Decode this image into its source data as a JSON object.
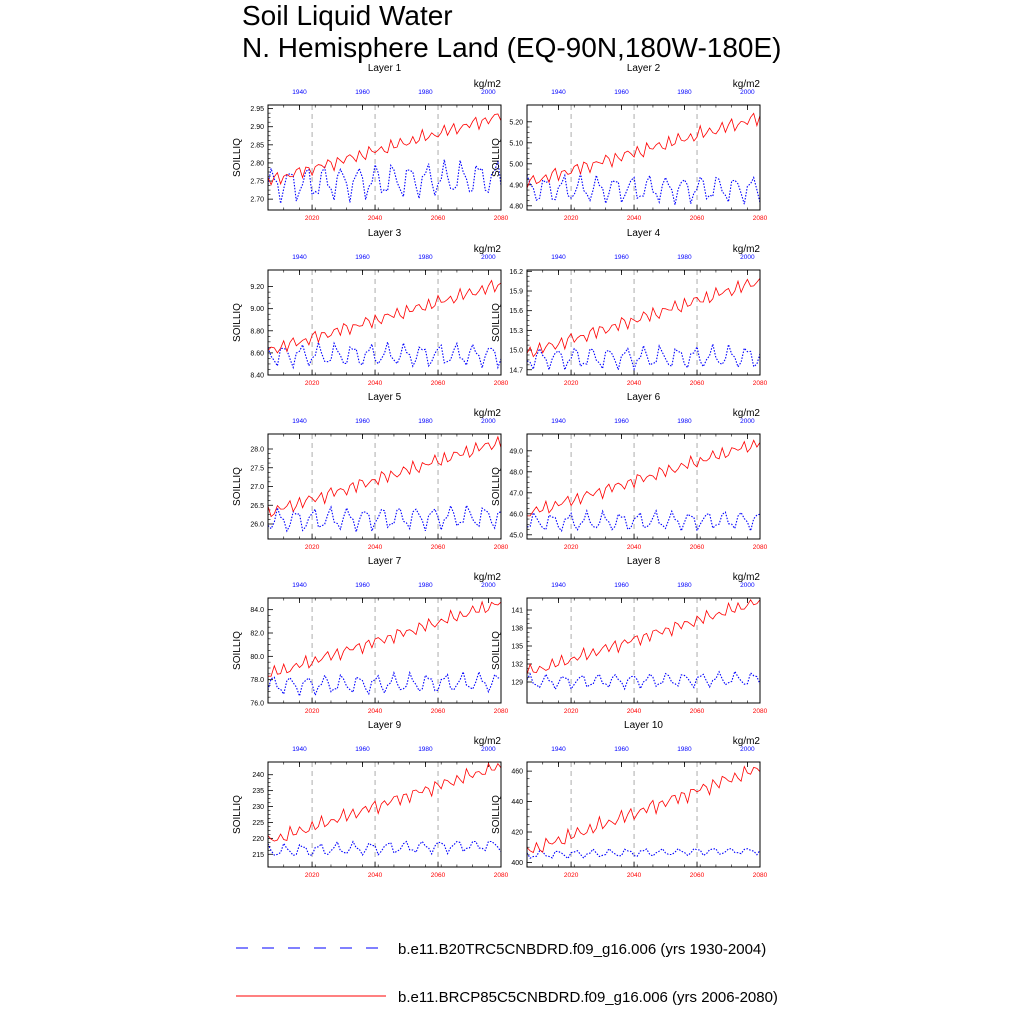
{
  "figure": {
    "title_line1": "Soil Liquid Water",
    "title_line2": "N. Hemisphere Land (EQ-90N,180W-180E)",
    "units": "kg/m2",
    "ylabel": "SOILLIQ",
    "colors": {
      "historical": "#0000ff",
      "future": "#ff0000",
      "grid": "#999999"
    }
  },
  "legend": {
    "historical": "b.e11.B20TRC5CNBDRD.f09_g16.006 (yrs 1930-2004)",
    "future": "b.e11.BRCP85C5CNBDRD.f09_g16.006 (yrs 2006-2080)"
  },
  "chart_data": [
    {
      "type": "line",
      "title": "Layer 1",
      "units": "kg/m2",
      "ylabel": "SOILLIQ",
      "ylim": [
        2.67,
        2.96
      ],
      "yticks": [
        2.7,
        2.75,
        2.8,
        2.85,
        2.9,
        2.95
      ],
      "ytick_labels": [
        "2.70",
        "2.75",
        "2.80",
        "2.85",
        "2.90",
        "2.95"
      ],
      "x_bottom_ticks": [
        2020,
        2040,
        2060,
        2080
      ],
      "x_top_ticks": [
        1940,
        1960,
        1980,
        2000
      ],
      "dashed_grid_x": [
        2020,
        2040,
        2060
      ],
      "series": [
        {
          "name": "b.e11.B20TRC5CNBDRD.f09_g16.006 (yrs 1930-2004)",
          "x_range": [
            1930,
            2004
          ],
          "y_start": 2.74,
          "y_end": 2.76,
          "y_min": 2.68,
          "y_max": 2.82,
          "style": "dotted"
        },
        {
          "name": "b.e11.BRCP85C5CNBDRD.f09_g16.006 (yrs 2006-2080)",
          "x_range": [
            2006,
            2080
          ],
          "y_start": 2.75,
          "y_end": 2.93,
          "y_min": 2.74,
          "y_max": 2.95,
          "style": "solid"
        }
      ]
    },
    {
      "type": "line",
      "title": "Layer 2",
      "units": "kg/m2",
      "ylabel": "SOILLIQ",
      "ylim": [
        4.78,
        5.28
      ],
      "yticks": [
        4.8,
        4.9,
        5.0,
        5.1,
        5.2
      ],
      "ytick_labels": [
        "4.80",
        "4.90",
        "5.00",
        "5.10",
        "5.20"
      ],
      "x_bottom_ticks": [
        2020,
        2040,
        2060,
        2080
      ],
      "x_top_ticks": [
        1940,
        1960,
        1980,
        2000
      ],
      "dashed_grid_x": [
        2020,
        2040,
        2060
      ],
      "series": [
        {
          "name": "b.e11.B20TRC5CNBDRD.f09_g16.006 (yrs 1930-2004)",
          "x_range": [
            1930,
            2004
          ],
          "y_start": 4.88,
          "y_end": 4.88,
          "y_min": 4.8,
          "y_max": 4.99,
          "style": "dotted"
        },
        {
          "name": "b.e11.BRCP85C5CNBDRD.f09_g16.006 (yrs 2006-2080)",
          "x_range": [
            2006,
            2080
          ],
          "y_start": 4.91,
          "y_end": 5.22,
          "y_min": 4.87,
          "y_max": 5.26,
          "style": "solid"
        }
      ]
    },
    {
      "type": "line",
      "title": "Layer 3",
      "units": "kg/m2",
      "ylabel": "SOILLIQ",
      "ylim": [
        8.4,
        9.35
      ],
      "yticks": [
        8.4,
        8.6,
        8.8,
        9.0,
        9.2
      ],
      "ytick_labels": [
        "8.40",
        "8.60",
        "8.80",
        "9.00",
        "9.20"
      ],
      "x_bottom_ticks": [
        2020,
        2040,
        2060,
        2080
      ],
      "x_top_ticks": [
        1940,
        1960,
        1980,
        2000
      ],
      "dashed_grid_x": [
        2020,
        2040,
        2060
      ],
      "series": [
        {
          "name": "b.e11.B20TRC5CNBDRD.f09_g16.006 (yrs 1930-2004)",
          "x_range": [
            1930,
            2004
          ],
          "y_start": 8.58,
          "y_end": 8.58,
          "y_min": 8.45,
          "y_max": 8.75,
          "style": "dotted"
        },
        {
          "name": "b.e11.BRCP85C5CNBDRD.f09_g16.006 (yrs 2006-2080)",
          "x_range": [
            2006,
            2080
          ],
          "y_start": 8.62,
          "y_end": 9.22,
          "y_min": 8.6,
          "y_max": 9.3,
          "style": "solid"
        }
      ]
    },
    {
      "type": "line",
      "title": "Layer 4",
      "units": "kg/m2",
      "ylabel": "SOILLIQ",
      "ylim": [
        14.62,
        16.22
      ],
      "yticks": [
        14.7,
        15.0,
        15.3,
        15.6,
        15.9,
        16.2
      ],
      "ytick_labels": [
        "14.7",
        "15.0",
        "15.3",
        "15.6",
        "15.9",
        "16.2"
      ],
      "x_bottom_ticks": [
        2020,
        2040,
        2060,
        2080
      ],
      "x_top_ticks": [
        1940,
        1960,
        1980,
        2000
      ],
      "dashed_grid_x": [
        2020,
        2040,
        2060
      ],
      "series": [
        {
          "name": "b.e11.B20TRC5CNBDRD.f09_g16.006 (yrs 1930-2004)",
          "x_range": [
            1930,
            2004
          ],
          "y_start": 14.87,
          "y_end": 14.9,
          "y_min": 14.7,
          "y_max": 15.2,
          "style": "dotted"
        },
        {
          "name": "b.e11.BRCP85C5CNBDRD.f09_g16.006 (yrs 2006-2080)",
          "x_range": [
            2006,
            2080
          ],
          "y_start": 14.95,
          "y_end": 16.05,
          "y_min": 14.9,
          "y_max": 16.15,
          "style": "solid"
        }
      ]
    },
    {
      "type": "line",
      "title": "Layer 5",
      "units": "kg/m2",
      "ylabel": "SOILLIQ",
      "ylim": [
        25.6,
        28.4
      ],
      "yticks": [
        26.0,
        26.5,
        27.0,
        27.5,
        28.0
      ],
      "ytick_labels": [
        "26.0",
        "26.5",
        "27.0",
        "27.5",
        "28.0"
      ],
      "x_bottom_ticks": [
        2020,
        2040,
        2060,
        2080
      ],
      "x_top_ticks": [
        1940,
        1960,
        1980,
        2000
      ],
      "dashed_grid_x": [
        2020,
        2040,
        2060
      ],
      "series": [
        {
          "name": "b.e11.B20TRC5CNBDRD.f09_g16.006 (yrs 1930-2004)",
          "x_range": [
            1930,
            2004
          ],
          "y_start": 26.1,
          "y_end": 26.2,
          "y_min": 25.75,
          "y_max": 26.65,
          "style": "dotted"
        },
        {
          "name": "b.e11.BRCP85C5CNBDRD.f09_g16.006 (yrs 2006-2080)",
          "x_range": [
            2006,
            2080
          ],
          "y_start": 26.3,
          "y_end": 28.2,
          "y_min": 26.2,
          "y_max": 28.35,
          "style": "solid"
        }
      ]
    },
    {
      "type": "line",
      "title": "Layer 6",
      "units": "kg/m2",
      "ylabel": "SOILLIQ",
      "ylim": [
        44.8,
        49.8
      ],
      "yticks": [
        45.0,
        46.0,
        47.0,
        48.0,
        49.0
      ],
      "ytick_labels": [
        "45.0",
        "46.0",
        "47.0",
        "48.0",
        "49.0"
      ],
      "x_bottom_ticks": [
        2020,
        2040,
        2060,
        2080
      ],
      "x_top_ticks": [
        1940,
        1960,
        1980,
        2000
      ],
      "dashed_grid_x": [
        2020,
        2040,
        2060
      ],
      "series": [
        {
          "name": "b.e11.B20TRC5CNBDRD.f09_g16.006 (yrs 1930-2004)",
          "x_range": [
            1930,
            2004
          ],
          "y_start": 45.6,
          "y_end": 45.7,
          "y_min": 45.1,
          "y_max": 46.4,
          "style": "dotted"
        },
        {
          "name": "b.e11.BRCP85C5CNBDRD.f09_g16.006 (yrs 2006-2080)",
          "x_range": [
            2006,
            2080
          ],
          "y_start": 46.0,
          "y_end": 49.4,
          "y_min": 45.9,
          "y_max": 49.5,
          "style": "solid"
        }
      ]
    },
    {
      "type": "line",
      "title": "Layer 7",
      "units": "kg/m2",
      "ylabel": "SOILLIQ",
      "ylim": [
        76.0,
        85.0
      ],
      "yticks": [
        76.0,
        78.0,
        80.0,
        82.0,
        84.0
      ],
      "ytick_labels": [
        "76.0",
        "78.0",
        "80.0",
        "82.0",
        "84.0"
      ],
      "x_bottom_ticks": [
        2020,
        2040,
        2060,
        2080
      ],
      "x_top_ticks": [
        1940,
        1960,
        1980,
        2000
      ],
      "dashed_grid_x": [
        2020,
        2040,
        2060
      ],
      "series": [
        {
          "name": "b.e11.B20TRC5CNBDRD.f09_g16.006 (yrs 1930-2004)",
          "x_range": [
            1930,
            2004
          ],
          "y_start": 77.5,
          "y_end": 77.8,
          "y_min": 76.4,
          "y_max": 78.8,
          "style": "dotted"
        },
        {
          "name": "b.e11.BRCP85C5CNBDRD.f09_g16.006 (yrs 2006-2080)",
          "x_range": [
            2006,
            2080
          ],
          "y_start": 78.4,
          "y_end": 84.6,
          "y_min": 78.3,
          "y_max": 84.8,
          "style": "solid"
        }
      ]
    },
    {
      "type": "line",
      "title": "Layer 8",
      "units": "kg/m2",
      "ylabel": "SOILLIQ",
      "ylim": [
        125.5,
        143.0
      ],
      "yticks": [
        129,
        132,
        135,
        138,
        141
      ],
      "ytick_labels": [
        "129",
        "132",
        "135",
        "138",
        "141"
      ],
      "x_bottom_ticks": [
        2020,
        2040,
        2060,
        2080
      ],
      "x_top_ticks": [
        1940,
        1960,
        1980,
        2000
      ],
      "dashed_grid_x": [
        2020,
        2040,
        2060
      ],
      "series": [
        {
          "name": "b.e11.B20TRC5CNBDRD.f09_g16.006 (yrs 1930-2004)",
          "x_range": [
            1930,
            2004
          ],
          "y_start": 129.0,
          "y_end": 129.5,
          "y_min": 127.5,
          "y_max": 131.0,
          "style": "dotted"
        },
        {
          "name": "b.e11.BRCP85C5CNBDRD.f09_g16.006 (yrs 2006-2080)",
          "x_range": [
            2006,
            2080
          ],
          "y_start": 130.5,
          "y_end": 142.5,
          "y_min": 130.3,
          "y_max": 142.7,
          "style": "solid"
        }
      ]
    },
    {
      "type": "line",
      "title": "Layer 9",
      "units": "kg/m2",
      "ylabel": "SOILLIQ",
      "ylim": [
        211.0,
        244.0
      ],
      "yticks": [
        215,
        220,
        225,
        230,
        235,
        240
      ],
      "ytick_labels": [
        "215",
        "220",
        "225",
        "230",
        "235",
        "240"
      ],
      "x_bottom_ticks": [
        2020,
        2040,
        2060,
        2080
      ],
      "x_top_ticks": [
        1940,
        1960,
        1980,
        2000
      ],
      "dashed_grid_x": [
        2020,
        2040,
        2060
      ],
      "series": [
        {
          "name": "b.e11.B20TRC5CNBDRD.f09_g16.006 (yrs 1930-2004)",
          "x_range": [
            1930,
            2004
          ],
          "y_start": 216.0,
          "y_end": 218.0,
          "y_min": 213.0,
          "y_max": 219.0,
          "style": "dotted"
        },
        {
          "name": "b.e11.BRCP85C5CNBDRD.f09_g16.006 (yrs 2006-2080)",
          "x_range": [
            2006,
            2080
          ],
          "y_start": 219.0,
          "y_end": 243.0,
          "y_min": 218.5,
          "y_max": 243.5,
          "style": "solid"
        }
      ]
    },
    {
      "type": "line",
      "title": "Layer 10",
      "units": "kg/m2",
      "ylabel": "SOILLIQ",
      "ylim": [
        397.0,
        466.0
      ],
      "yticks": [
        400,
        420,
        440,
        460
      ],
      "ytick_labels": [
        "400",
        "420",
        "440",
        "460"
      ],
      "x_bottom_ticks": [
        2020,
        2040,
        2060,
        2080
      ],
      "x_top_ticks": [
        1940,
        1960,
        1980,
        2000
      ],
      "dashed_grid_x": [
        2020,
        2040,
        2060
      ],
      "series": [
        {
          "name": "b.e11.B20TRC5CNBDRD.f09_g16.006 (yrs 1930-2004)",
          "x_range": [
            1930,
            2004
          ],
          "y_start": 405.0,
          "y_end": 408.0,
          "y_min": 401.0,
          "y_max": 409.0,
          "style": "dotted"
        },
        {
          "name": "b.e11.BRCP85C5CNBDRD.f09_g16.006 (yrs 2006-2080)",
          "x_range": [
            2006,
            2080
          ],
          "y_start": 407.0,
          "y_end": 462.0,
          "y_min": 406.5,
          "y_max": 463.0,
          "style": "solid"
        }
      ]
    }
  ]
}
